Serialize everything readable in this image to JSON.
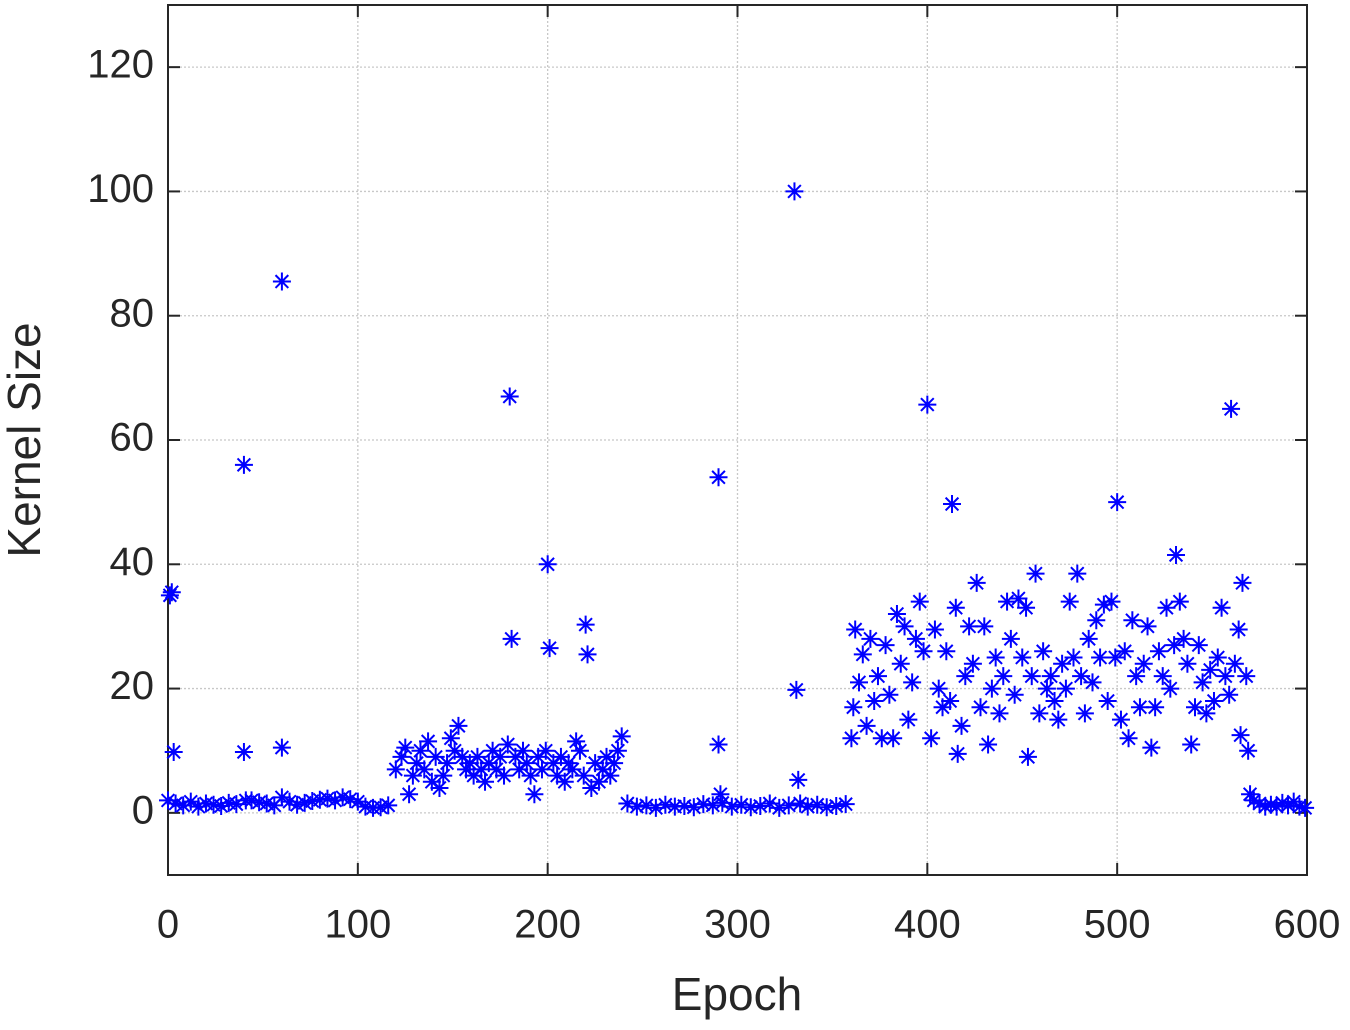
{
  "chart_data": {
    "type": "scatter",
    "xlabel": "Epoch",
    "ylabel": "Kernel Size",
    "color": "#0000ff",
    "marker": "asterisk",
    "grid": true,
    "xlim": [
      0,
      600
    ],
    "xticks": [
      0,
      100,
      200,
      300,
      400,
      500,
      600
    ],
    "ylim": [
      -10,
      130
    ],
    "yticks": [
      0,
      20,
      40,
      60,
      80,
      100,
      120
    ],
    "x": [
      0,
      4,
      8,
      12,
      16,
      20,
      24,
      28,
      32,
      36,
      44,
      48,
      52,
      56,
      64,
      68,
      72,
      76,
      80,
      84,
      88,
      92,
      96,
      100,
      104,
      108,
      112,
      116,
      1,
      2,
      3,
      40,
      40,
      41,
      60,
      60,
      60,
      120,
      123,
      125,
      127,
      129,
      131,
      133,
      135,
      137,
      139,
      141,
      143,
      145,
      147,
      149,
      151,
      153,
      155,
      157,
      159,
      161,
      163,
      165,
      167,
      169,
      171,
      173,
      175,
      177,
      179,
      183,
      185,
      187,
      189,
      191,
      193,
      195,
      197,
      199,
      203,
      205,
      207,
      209,
      211,
      213,
      215,
      217,
      219,
      223,
      225,
      227,
      229,
      231,
      233,
      235,
      237,
      239,
      180,
      181,
      200,
      201,
      220,
      221,
      242,
      247,
      252,
      257,
      262,
      267,
      272,
      277,
      282,
      287,
      292,
      297,
      302,
      307,
      312,
      317,
      322,
      327,
      337,
      342,
      347,
      352,
      357,
      290,
      290,
      291,
      330,
      331,
      332,
      333,
      360,
      361,
      362,
      364,
      366,
      368,
      370,
      372,
      374,
      376,
      378,
      380,
      382,
      384,
      386,
      388,
      390,
      392,
      394,
      396,
      398,
      400,
      402,
      404,
      406,
      408,
      410,
      412,
      413,
      415,
      416,
      418,
      420,
      422,
      424,
      426,
      428,
      430,
      432,
      434,
      436,
      438,
      440,
      442,
      444,
      446,
      448,
      450,
      452,
      453,
      455,
      457,
      459,
      461,
      463,
      465,
      467,
      469,
      471,
      473,
      475,
      477,
      479,
      481,
      483,
      485,
      487,
      489,
      491,
      493,
      495,
      497,
      499,
      500,
      502,
      504,
      506,
      508,
      510,
      512,
      514,
      516,
      518,
      520,
      522,
      524,
      526,
      528,
      530,
      531,
      533,
      535,
      537,
      539,
      541,
      543,
      545,
      547,
      549,
      551,
      553,
      555,
      557,
      559,
      560,
      562,
      564,
      565,
      566,
      568,
      569,
      570,
      572,
      575,
      578,
      581,
      584,
      587,
      590,
      593,
      596,
      599
    ],
    "values": [
      2,
      1.5,
      1.2,
      1.8,
      1,
      1.5,
      1.3,
      1.1,
      1.6,
      1.4,
      2,
      1.7,
      1.5,
      1.2,
      1.8,
      1.3,
      1.6,
      1.9,
      2.1,
      2.3,
      2,
      2.5,
      2.2,
      1.8,
      1,
      0.8,
      0.9,
      1.2,
      35,
      35.5,
      9.8,
      56,
      9.8,
      2,
      85.5,
      10.5,
      2.5,
      7,
      9,
      10.5,
      3,
      6,
      8,
      10,
      7,
      11.5,
      5,
      9,
      4,
      6,
      8,
      12,
      10,
      14,
      9,
      7,
      8,
      6,
      9,
      7,
      5,
      8,
      10,
      7,
      9,
      6,
      11,
      9,
      7,
      10,
      8,
      6,
      3,
      9,
      7,
      10,
      8,
      6,
      9,
      5,
      8,
      7,
      11.5,
      10,
      6,
      4,
      8,
      5,
      7,
      9,
      6,
      8,
      10,
      12.3,
      67,
      28,
      40,
      26.5,
      30.3,
      25.5,
      1.5,
      1,
      1.2,
      0.8,
      1.3,
      1,
      1.1,
      0.9,
      1.4,
      1.2,
      1.6,
      1,
      1.3,
      0.9,
      1.1,
      1.5,
      0.8,
      1.2,
      1,
      1.3,
      0.9,
      1.1,
      1.4,
      54,
      11,
      3,
      100,
      19.8,
      5.3,
      1.5,
      12,
      17,
      29.5,
      21,
      25.5,
      14,
      28,
      18,
      22,
      12,
      27,
      19,
      12,
      32,
      24,
      30,
      15,
      21,
      28,
      34,
      26,
      65.7,
      12,
      29.5,
      20,
      17,
      26,
      18,
      49.7,
      33,
      9.5,
      14,
      22,
      30,
      24,
      37,
      17,
      30,
      11,
      20,
      25,
      16,
      22,
      34,
      28,
      19,
      34.5,
      25,
      33,
      9,
      22,
      38.5,
      16,
      26,
      20,
      22,
      18,
      15,
      24,
      20,
      34,
      25,
      38.5,
      22,
      16,
      28,
      21,
      31,
      25,
      33.5,
      18,
      34,
      25,
      50,
      15,
      26,
      12,
      31,
      22,
      17,
      24,
      30,
      10.5,
      17,
      26,
      22,
      33,
      20,
      27,
      41.5,
      34,
      28,
      24,
      11,
      17,
      27,
      21,
      16,
      23,
      18,
      25,
      33,
      22,
      19,
      65,
      24,
      29.5,
      12.5,
      37,
      22,
      10,
      3,
      2,
      1.5,
      1,
      1.3,
      1,
      1.6,
      1.2,
      1.8,
      1,
      0.8
    ]
  }
}
